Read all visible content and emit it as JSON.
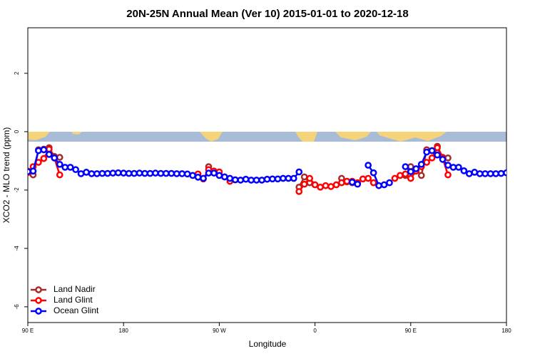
{
  "chart_data": {
    "type": "line",
    "title": "20N-25N Annual Mean (Ver 10)   2015-01-01 to 2020-12-18",
    "x_label": "Longitude",
    "y_label": "XCO2 - MLO trend (ppm)",
    "xlim": [
      90,
      540
    ],
    "xticks": [
      {
        "value": 90,
        "label": "90 E"
      },
      {
        "value": 180,
        "label": "180"
      },
      {
        "value": 270,
        "label": "90 W"
      },
      {
        "value": 360,
        "label": "0"
      },
      {
        "value": 450,
        "label": "90 E"
      },
      {
        "value": 540,
        "label": "180"
      }
    ],
    "ylim": [
      -6.54,
      3.56
    ],
    "yticks": [
      2,
      0,
      -2,
      -4,
      -6
    ],
    "legend": "lower left",
    "x": [
      90,
      95,
      100,
      105,
      110,
      115,
      120,
      125,
      130,
      135,
      140,
      145,
      150,
      155,
      160,
      165,
      170,
      175,
      180,
      185,
      190,
      195,
      200,
      205,
      210,
      215,
      220,
      225,
      230,
      235,
      240,
      245,
      250,
      255,
      260,
      265,
      270,
      275,
      280,
      285,
      290,
      295,
      300,
      305,
      310,
      315,
      320,
      325,
      330,
      335,
      340,
      345,
      350,
      355,
      360,
      365,
      370,
      375,
      380,
      385,
      390,
      395,
      400,
      405,
      410,
      415,
      420,
      425,
      430,
      435,
      440,
      445,
      450,
      455,
      460,
      465,
      470,
      475,
      480,
      485,
      490,
      495,
      500,
      505,
      510,
      515,
      520,
      525,
      530,
      535,
      540
    ],
    "series": [
      {
        "name": "Land Nadir",
        "color": "#a52a2a",
        "values": [
          -1.35,
          -1.48,
          -0.62,
          -0.6,
          -0.55,
          -0.85,
          -0.88,
          null,
          null,
          null,
          null,
          null,
          null,
          null,
          null,
          null,
          null,
          null,
          null,
          null,
          null,
          null,
          null,
          null,
          null,
          null,
          null,
          null,
          null,
          null,
          null,
          null,
          null,
          null,
          -1.2,
          null,
          null,
          null,
          null,
          null,
          null,
          null,
          null,
          null,
          null,
          null,
          null,
          null,
          null,
          null,
          null,
          -1.9,
          -1.55,
          -1.75,
          null,
          null,
          null,
          null,
          null,
          -1.6,
          -1.72,
          -1.75,
          null,
          null,
          null,
          null,
          null,
          null,
          null,
          null,
          null,
          -1.5,
          -1.2,
          -1.3,
          -1.5,
          -0.62,
          -0.65,
          -0.5,
          -0.88,
          -0.9,
          null,
          null,
          null,
          null,
          null,
          null,
          null,
          null,
          null,
          null,
          null
        ]
      },
      {
        "name": "Land Glint",
        "color": "#ff0000",
        "values": [
          -1.4,
          -1.2,
          -1.05,
          -0.92,
          -0.6,
          -0.9,
          -1.48,
          null,
          null,
          null,
          null,
          null,
          null,
          null,
          null,
          null,
          null,
          null,
          null,
          null,
          null,
          null,
          null,
          null,
          null,
          null,
          null,
          null,
          null,
          null,
          null,
          null,
          -1.45,
          -1.62,
          -1.3,
          -1.35,
          -1.38,
          -1.55,
          -1.7,
          -1.65,
          null,
          null,
          null,
          null,
          null,
          null,
          null,
          null,
          null,
          null,
          null,
          -2.05,
          -1.8,
          -1.6,
          -1.82,
          -1.9,
          -1.85,
          -1.88,
          -1.82,
          -1.75,
          -1.7,
          -1.7,
          -1.75,
          -1.62,
          -1.6,
          -1.75,
          null,
          null,
          null,
          -1.6,
          -1.5,
          -1.45,
          -1.6,
          -1.35,
          -1.2,
          -1.05,
          -0.9,
          -0.55,
          -0.9,
          -1.48,
          null,
          null,
          null,
          null,
          null,
          null,
          null,
          null,
          null,
          null,
          null
        ]
      },
      {
        "name": "Ocean Glint",
        "color": "#0000ff",
        "values": [
          -1.37,
          -1.35,
          -0.65,
          -0.62,
          -0.78,
          -0.9,
          -1.12,
          -1.22,
          -1.22,
          -1.3,
          -1.44,
          -1.39,
          -1.44,
          -1.44,
          -1.43,
          -1.43,
          -1.42,
          -1.41,
          -1.42,
          -1.43,
          -1.43,
          -1.42,
          -1.43,
          -1.43,
          -1.42,
          -1.43,
          -1.43,
          -1.43,
          -1.44,
          -1.44,
          -1.45,
          -1.5,
          -1.56,
          -1.6,
          -1.42,
          -1.42,
          -1.5,
          -1.55,
          -1.6,
          -1.65,
          -1.66,
          -1.63,
          -1.66,
          -1.66,
          -1.66,
          -1.63,
          -1.62,
          -1.62,
          -1.6,
          -1.6,
          -1.6,
          -1.38,
          null,
          null,
          null,
          null,
          null,
          null,
          null,
          null,
          null,
          -1.73,
          -1.8,
          null,
          -1.15,
          -1.41,
          -1.85,
          -1.82,
          -1.75,
          null,
          null,
          -1.2,
          -1.37,
          -1.27,
          -1.12,
          -0.7,
          -0.65,
          -0.8,
          -0.95,
          -1.15,
          -1.22,
          -1.22,
          -1.34,
          -1.44,
          -1.39,
          -1.44,
          -1.44,
          -1.44,
          -1.44,
          -1.43,
          -1.41
        ]
      }
    ]
  }
}
